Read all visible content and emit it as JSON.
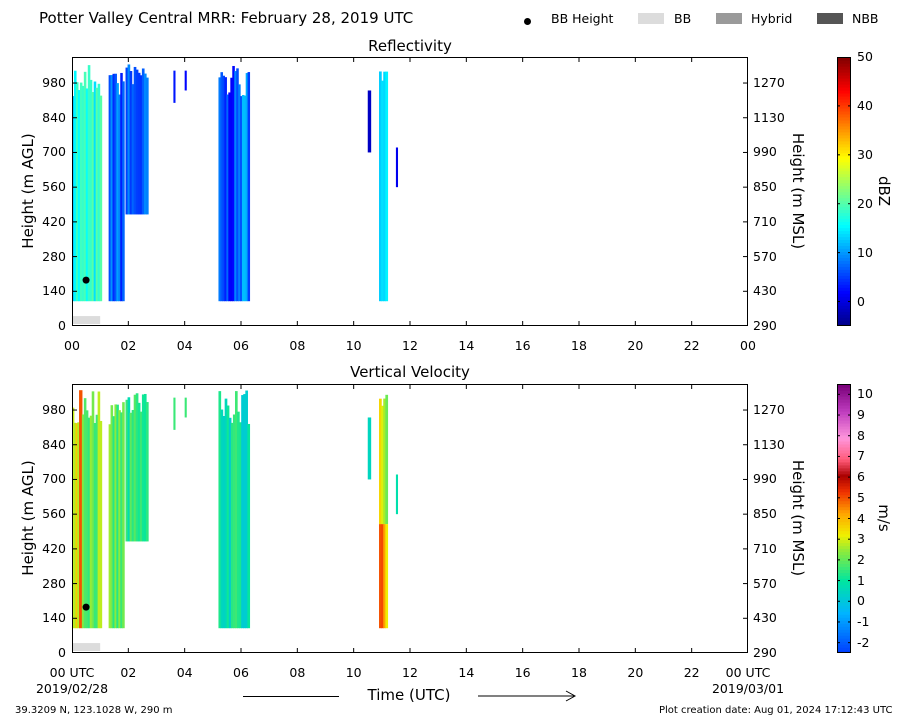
{
  "header": {
    "title": "Potter Valley Central MRR:  February 28, 2019 UTC",
    "legend": [
      {
        "label": "BB Height",
        "marker": "dot",
        "color": "#000000"
      },
      {
        "label": "BB",
        "marker": "swatch",
        "color": "#dcdcdc"
      },
      {
        "label": "Hybrid",
        "marker": "swatch",
        "color": "#9a9a9a"
      },
      {
        "label": "NBB",
        "marker": "swatch",
        "color": "#555555"
      }
    ]
  },
  "colors": {
    "bb_bar": "#dcdcdc",
    "bb_height_marker": "#000000"
  },
  "footer": {
    "location": "39.3209 N, 123.1028 W, 290 m",
    "creation": "Plot creation date: Aug 01, 2024 17:12:43 UTC",
    "time_label": "Time (UTC)",
    "start_date": "2019/02/28",
    "end_date": "2019/03/01"
  },
  "chart_data": [
    {
      "type": "heatmap",
      "title": "Reflectivity",
      "xlabel": "",
      "ylabel": "Height (m AGL)",
      "y2label": "Height (m MSL)",
      "x_ticks": [
        "00",
        "02",
        "04",
        "06",
        "08",
        "10",
        "12",
        "14",
        "16",
        "18",
        "20",
        "22",
        "00"
      ],
      "xlim": [
        0,
        24
      ],
      "y_ticks": [
        0,
        140,
        280,
        420,
        560,
        700,
        840,
        980
      ],
      "y2_ticks": [
        290,
        430,
        570,
        710,
        850,
        990,
        1130,
        1270
      ],
      "ylim": [
        0,
        1085
      ],
      "colorbar": {
        "label": "dBZ",
        "ticks": [
          0,
          10,
          20,
          30,
          40,
          50
        ],
        "range": [
          -5,
          50
        ],
        "colormap": "jet"
      },
      "bright_band": {
        "bb_height": [
          {
            "time_h": 0.5,
            "height_m": 185
          }
        ],
        "bb_periods": [
          {
            "start_h": 0.0,
            "end_h": 1.0
          }
        ]
      },
      "echo_regions": [
        {
          "start_h": 0.0,
          "end_h": 1.05,
          "bottom_m": 100,
          "top_m": 1060,
          "typical": 17
        },
        {
          "start_h": 1.3,
          "end_h": 1.85,
          "bottom_m": 100,
          "top_m": 1060,
          "typical": 7
        },
        {
          "start_h": 1.9,
          "end_h": 2.7,
          "bottom_m": 450,
          "top_m": 1060,
          "typical": 6
        },
        {
          "start_h": 3.6,
          "end_h": 3.65,
          "bottom_m": 900,
          "top_m": 1030,
          "typical": 2
        },
        {
          "start_h": 4.0,
          "end_h": 4.05,
          "bottom_m": 950,
          "top_m": 1030,
          "typical": 2
        },
        {
          "start_h": 5.2,
          "end_h": 5.9,
          "bottom_m": 100,
          "top_m": 1060,
          "typical": 5
        },
        {
          "start_h": 5.9,
          "end_h": 6.3,
          "bottom_m": 100,
          "top_m": 1060,
          "typical": 9
        },
        {
          "start_h": 10.5,
          "end_h": 10.6,
          "bottom_m": 700,
          "top_m": 950,
          "typical": 2
        },
        {
          "start_h": 10.9,
          "end_h": 11.2,
          "bottom_m": 100,
          "top_m": 1060,
          "typical": 12
        },
        {
          "start_h": 11.5,
          "end_h": 11.55,
          "bottom_m": 560,
          "top_m": 720,
          "typical": 2
        }
      ]
    },
    {
      "type": "heatmap",
      "title": "Vertical Velocity",
      "xlabel": "Time (UTC)",
      "ylabel": "Height (m AGL)",
      "y2label": "Height (m MSL)",
      "x_ticks": [
        "00 UTC",
        "02",
        "04",
        "06",
        "08",
        "10",
        "12",
        "14",
        "16",
        "18",
        "20",
        "22",
        "00 UTC"
      ],
      "xlim": [
        0,
        24
      ],
      "y_ticks": [
        0,
        140,
        280,
        420,
        560,
        700,
        840,
        980
      ],
      "y2_ticks": [
        290,
        430,
        570,
        710,
        850,
        990,
        1130,
        1270
      ],
      "ylim": [
        0,
        1085
      ],
      "colorbar": {
        "label": "m/s",
        "ticks": [
          -2,
          -1,
          0,
          1,
          2,
          3,
          4,
          5,
          6,
          7,
          8,
          9,
          10
        ],
        "range": [
          -2.5,
          10.5
        ],
        "colormap": "velocity"
      },
      "bright_band": {
        "bb_height": [
          {
            "time_h": 0.5,
            "height_m": 185
          }
        ],
        "bb_periods": [
          {
            "start_h": 0.0,
            "end_h": 1.0
          }
        ]
      },
      "echo_regions": [
        {
          "start_h": 0.0,
          "end_h": 0.25,
          "bottom_m": 100,
          "top_m": 1060,
          "typical": 3.5
        },
        {
          "start_h": 0.25,
          "end_h": 0.35,
          "bottom_m": 100,
          "top_m": 1060,
          "typical": 5.5
        },
        {
          "start_h": 0.35,
          "end_h": 1.05,
          "bottom_m": 100,
          "top_m": 1060,
          "typical": 2.2
        },
        {
          "start_h": 1.3,
          "end_h": 1.85,
          "bottom_m": 100,
          "top_m": 1060,
          "typical": 1.8
        },
        {
          "start_h": 1.9,
          "end_h": 2.7,
          "bottom_m": 450,
          "top_m": 1060,
          "typical": 1.2
        },
        {
          "start_h": 3.6,
          "end_h": 3.65,
          "bottom_m": 900,
          "top_m": 1030,
          "typical": 1.5
        },
        {
          "start_h": 4.0,
          "end_h": 4.05,
          "bottom_m": 950,
          "top_m": 1030,
          "typical": 1.2
        },
        {
          "start_h": 5.2,
          "end_h": 6.3,
          "bottom_m": 100,
          "top_m": 1060,
          "typical": 0.9
        },
        {
          "start_h": 10.5,
          "end_h": 10.6,
          "bottom_m": 700,
          "top_m": 950,
          "typical": 1.0
        },
        {
          "start_h": 10.9,
          "end_h": 11.05,
          "bottom_m": 100,
          "top_m": 520,
          "typical": 5.5
        },
        {
          "start_h": 10.9,
          "end_h": 11.2,
          "bottom_m": 520,
          "top_m": 1060,
          "typical": 2.8
        },
        {
          "start_h": 11.05,
          "end_h": 11.2,
          "bottom_m": 100,
          "top_m": 520,
          "typical": 3.8
        },
        {
          "start_h": 11.5,
          "end_h": 11.55,
          "bottom_m": 560,
          "top_m": 720,
          "typical": 0.8
        }
      ]
    }
  ]
}
